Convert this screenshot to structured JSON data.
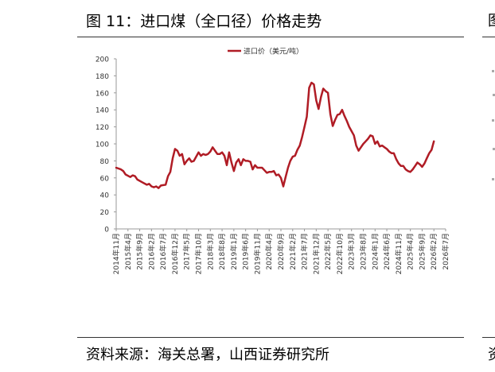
{
  "header": {
    "title": "图 11：进口煤（全口径）价格走势"
  },
  "footer": {
    "source": "资料来源：海关总署，山西证券研究所"
  },
  "neighbor_panel": {
    "title_glyph": "图",
    "source_glyph": "资"
  },
  "colors": {
    "series": "#b01c25",
    "axis": "#999999",
    "rule": "#333333"
  },
  "chart_data": {
    "type": "line",
    "title": "",
    "xlabel": "",
    "ylabel": "",
    "ylim": [
      0,
      200
    ],
    "yticks": [
      0,
      20,
      40,
      60,
      80,
      100,
      120,
      140,
      160,
      180,
      200
    ],
    "grid": false,
    "legend": "top-center",
    "x_start": "2014-11",
    "x_end": "2026-07",
    "xticks": [
      "2014年11月",
      "2015年4月",
      "2015年9月",
      "2016年2月",
      "2016年7月",
      "2016年12月",
      "2017年5月",
      "2017年10月",
      "2018年3月",
      "2018年8月",
      "2019年1月",
      "2019年6月",
      "2019年11月",
      "2020年4月",
      "2020年9月",
      "2021年2月",
      "2021年7月",
      "2021年12月",
      "2022年5月",
      "2022年10月",
      "2023年3月",
      "2023年8月",
      "2024年1月",
      "2024年6月",
      "2024年11月",
      "2025年4月",
      "2025年9月",
      "2026年2月",
      "2026年7月"
    ],
    "series": [
      {
        "name": "进口价（美元/吨）",
        "points": [
          [
            "2014-11",
            72
          ],
          [
            "2015-01",
            70
          ],
          [
            "2015-02",
            68
          ],
          [
            "2015-03",
            64
          ],
          [
            "2015-05",
            61
          ],
          [
            "2015-06",
            63
          ],
          [
            "2015-07",
            62
          ],
          [
            "2015-08",
            58
          ],
          [
            "2015-10",
            55
          ],
          [
            "2015-12",
            52
          ],
          [
            "2016-01",
            53
          ],
          [
            "2016-02",
            50
          ],
          [
            "2016-03",
            49
          ],
          [
            "2016-04",
            50
          ],
          [
            "2016-05",
            48
          ],
          [
            "2016-06",
            51
          ],
          [
            "2016-08",
            52
          ],
          [
            "2016-09",
            62
          ],
          [
            "2016-10",
            67
          ],
          [
            "2016-11",
            83
          ],
          [
            "2016-12",
            94
          ],
          [
            "2017-01",
            92
          ],
          [
            "2017-02",
            86
          ],
          [
            "2017-03",
            88
          ],
          [
            "2017-04",
            76
          ],
          [
            "2017-05",
            80
          ],
          [
            "2017-06",
            83
          ],
          [
            "2017-07",
            79
          ],
          [
            "2017-08",
            80
          ],
          [
            "2017-09",
            85
          ],
          [
            "2017-10",
            90
          ],
          [
            "2017-11",
            86
          ],
          [
            "2017-12",
            88
          ],
          [
            "2018-01",
            87
          ],
          [
            "2018-02",
            88
          ],
          [
            "2018-03",
            91
          ],
          [
            "2018-04",
            96
          ],
          [
            "2018-05",
            92
          ],
          [
            "2018-06",
            88
          ],
          [
            "2018-07",
            88
          ],
          [
            "2018-08",
            90
          ],
          [
            "2018-09",
            86
          ],
          [
            "2018-10",
            75
          ],
          [
            "2018-11",
            90
          ],
          [
            "2018-12",
            78
          ],
          [
            "2019-01",
            68
          ],
          [
            "2019-02",
            78
          ],
          [
            "2019-03",
            82
          ],
          [
            "2019-04",
            75
          ],
          [
            "2019-05",
            82
          ],
          [
            "2019-06",
            80
          ],
          [
            "2019-07",
            80
          ],
          [
            "2019-08",
            79
          ],
          [
            "2019-09",
            70
          ],
          [
            "2019-10",
            75
          ],
          [
            "2019-11",
            72
          ],
          [
            "2019-12",
            72
          ],
          [
            "2020-01",
            72
          ],
          [
            "2020-02",
            69
          ],
          [
            "2020-03",
            66
          ],
          [
            "2020-04",
            67
          ],
          [
            "2020-05",
            67
          ],
          [
            "2020-06",
            68
          ],
          [
            "2020-07",
            63
          ],
          [
            "2020-08",
            64
          ],
          [
            "2020-09",
            60
          ],
          [
            "2020-10",
            50
          ],
          [
            "2020-11",
            61
          ],
          [
            "2020-12",
            72
          ],
          [
            "2021-01",
            80
          ],
          [
            "2021-02",
            85
          ],
          [
            "2021-03",
            86
          ],
          [
            "2021-04",
            93
          ],
          [
            "2021-05",
            98
          ],
          [
            "2021-06",
            108
          ],
          [
            "2021-07",
            120
          ],
          [
            "2021-08",
            132
          ],
          [
            "2021-09",
            166
          ],
          [
            "2021-10",
            172
          ],
          [
            "2021-11",
            170
          ],
          [
            "2021-12",
            151
          ],
          [
            "2022-01",
            141
          ],
          [
            "2022-02",
            155
          ],
          [
            "2022-03",
            165
          ],
          [
            "2022-04",
            162
          ],
          [
            "2022-05",
            160
          ],
          [
            "2022-06",
            135
          ],
          [
            "2022-07",
            121
          ],
          [
            "2022-08",
            128
          ],
          [
            "2022-09",
            134
          ],
          [
            "2022-10",
            135
          ],
          [
            "2022-11",
            140
          ],
          [
            "2022-12",
            133
          ],
          [
            "2023-01",
            127
          ],
          [
            "2023-02",
            120
          ],
          [
            "2023-03",
            115
          ],
          [
            "2023-04",
            110
          ],
          [
            "2023-05",
            98
          ],
          [
            "2023-06",
            92
          ],
          [
            "2023-07",
            96
          ],
          [
            "2023-08",
            100
          ],
          [
            "2023-09",
            103
          ],
          [
            "2023-10",
            106
          ],
          [
            "2023-11",
            110
          ],
          [
            "2023-12",
            109
          ],
          [
            "2024-01",
            100
          ],
          [
            "2024-02",
            103
          ],
          [
            "2024-03",
            97
          ],
          [
            "2024-04",
            98
          ],
          [
            "2024-05",
            96
          ],
          [
            "2024-06",
            94
          ],
          [
            "2024-07",
            91
          ],
          [
            "2024-08",
            89
          ],
          [
            "2024-09",
            89
          ],
          [
            "2024-10",
            82
          ],
          [
            "2024-11",
            77
          ],
          [
            "2024-12",
            74
          ],
          [
            "2025-01",
            74
          ],
          [
            "2025-02",
            70
          ],
          [
            "2025-03",
            68
          ],
          [
            "2025-04",
            67
          ],
          [
            "2025-05",
            70
          ],
          [
            "2025-06",
            74
          ],
          [
            "2025-07",
            78
          ],
          [
            "2025-08",
            76
          ],
          [
            "2025-09",
            73
          ],
          [
            "2025-10",
            77
          ],
          [
            "2025-11",
            83
          ],
          [
            "2025-12",
            89
          ],
          [
            "2026-01",
            93
          ],
          [
            "2026-02",
            103
          ]
        ]
      }
    ]
  }
}
